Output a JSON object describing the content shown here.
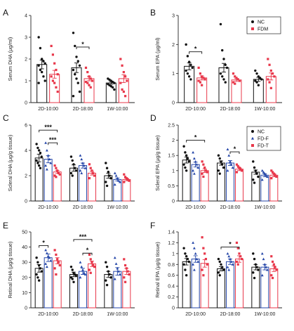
{
  "colors": {
    "nc": "#111111",
    "fd": "#e8374a",
    "fdf": "#2546a8",
    "fdt": "#e8374a"
  },
  "chart_data": [
    {
      "panel": "A",
      "type": "scatter",
      "ylabel": "Serum DHA (μg/ml)",
      "ylim": [
        0,
        4
      ],
      "yticks": [
        0,
        1,
        2,
        3,
        4
      ],
      "categories": [
        "2D-10:00",
        "2D-18:00",
        "1W-10:00"
      ],
      "series": [
        {
          "group": "nc",
          "means": [
            1.75,
            1.6,
            0.9
          ],
          "sems": [
            0.2,
            0.22,
            0.06
          ],
          "points": [
            [
              3.0,
              2.5,
              2.0,
              1.9,
              1.8,
              1.7,
              1.5,
              1.4,
              1.2,
              1.0,
              0.9
            ],
            [
              3.2,
              2.6,
              2.1,
              1.9,
              1.7,
              1.5,
              1.3,
              1.1,
              0.9,
              0.5,
              0.3
            ],
            [
              1.1,
              1.05,
              1.0,
              0.95,
              0.9,
              0.85,
              0.8,
              0.75,
              0.7,
              0.6
            ]
          ]
        },
        {
          "group": "fd",
          "means": [
            1.3,
            1.1,
            1.1
          ],
          "sems": [
            0.18,
            0.1,
            0.18
          ],
          "points": [
            [
              2.6,
              2.2,
              1.8,
              1.5,
              1.3,
              1.2,
              1.0,
              0.9,
              0.7,
              0.5
            ],
            [
              1.6,
              1.4,
              1.2,
              1.1,
              1.0,
              0.95,
              0.9,
              0.8,
              0.7
            ],
            [
              2.0,
              1.7,
              1.4,
              1.2,
              1.0,
              0.9,
              0.6,
              0.5,
              0.3
            ]
          ]
        }
      ],
      "sig": [
        {
          "cat": 1,
          "a": "nc",
          "b": "fd",
          "label": "*",
          "y": 2.55
        }
      ]
    },
    {
      "panel": "B",
      "type": "scatter",
      "ylabel": "Serum EPA (μg/ml)",
      "ylim": [
        0,
        3
      ],
      "yticks": [
        0,
        1,
        2,
        3
      ],
      "categories": [
        "2D-10:00",
        "2D-18:00",
        "1W-10:00"
      ],
      "series": [
        {
          "group": "nc",
          "means": [
            1.25,
            1.2,
            0.8
          ],
          "sems": [
            0.12,
            0.15,
            0.07
          ],
          "points": [
            [
              2.0,
              1.6,
              1.4,
              1.3,
              1.2,
              1.1,
              1.0,
              0.9,
              0.8
            ],
            [
              2.7,
              1.8,
              1.5,
              1.3,
              1.2,
              1.0,
              0.9,
              0.8,
              0.7
            ],
            [
              1.1,
              1.0,
              0.9,
              0.85,
              0.8,
              0.75,
              0.7,
              0.6
            ]
          ]
        },
        {
          "group": "fd",
          "means": [
            0.85,
            0.78,
            0.9
          ],
          "sems": [
            0.07,
            0.05,
            0.12
          ],
          "points": [
            [
              1.2,
              1.0,
              0.9,
              0.85,
              0.8,
              0.75,
              0.7,
              0.6
            ],
            [
              1.0,
              0.9,
              0.85,
              0.8,
              0.75,
              0.7,
              0.65
            ],
            [
              1.5,
              1.3,
              1.1,
              1.0,
              0.9,
              0.8,
              0.7,
              0.5
            ]
          ]
        }
      ],
      "sig": [
        {
          "cat": 0,
          "a": "nc",
          "b": "fd",
          "label": "*",
          "y": 1.75
        }
      ],
      "legend": [
        "NC",
        "FDM"
      ]
    },
    {
      "panel": "C",
      "type": "scatter",
      "ylabel": "Scleral DHA (μg/g tissue)",
      "ylim": [
        0,
        6
      ],
      "yticks": [
        0,
        2,
        4,
        6
      ],
      "categories": [
        "2D-10:00",
        "2D-18:00",
        "1W-10:00"
      ],
      "series": [
        {
          "group": "nc",
          "means": [
            3.4,
            2.6,
            2.0
          ],
          "sems": [
            0.3,
            0.25,
            0.2
          ],
          "points": [
            [
              4.5,
              4.2,
              4.0,
              3.8,
              3.5,
              3.2,
              3.0,
              2.8,
              2.6
            ],
            [
              3.5,
              3.2,
              2.9,
              2.6,
              2.4,
              2.2,
              2.0
            ],
            [
              3.0,
              2.6,
              2.3,
              2.0,
              1.8,
              1.5,
              1.2
            ]
          ]
        },
        {
          "group": "fdf",
          "means": [
            3.3,
            2.8,
            1.7
          ],
          "sems": [
            0.28,
            0.2,
            0.12
          ],
          "points": [
            [
              4.6,
              4.0,
              3.6,
              3.3,
              3.0,
              2.8,
              2.5
            ],
            [
              3.6,
              3.3,
              3.0,
              2.8,
              2.6,
              2.4,
              2.2
            ],
            [
              2.2,
              2.0,
              1.8,
              1.6,
              1.5,
              1.3
            ]
          ]
        },
        {
          "group": "fdt",
          "means": [
            2.3,
            2.2,
            1.7
          ],
          "sems": [
            0.12,
            0.15,
            0.1
          ],
          "points": [
            [
              2.8,
              2.6,
              2.4,
              2.2,
              2.1,
              2.0,
              1.9
            ],
            [
              2.9,
              2.6,
              2.4,
              2.2,
              2.0,
              1.8
            ],
            [
              2.1,
              1.9,
              1.8,
              1.7,
              1.6,
              1.5
            ]
          ]
        }
      ],
      "sig": [
        {
          "cat": 0,
          "a": "nc",
          "b": "fdt",
          "label": "***",
          "y": 5.6
        },
        {
          "cat": 0,
          "a": "fdf",
          "b": "fdt",
          "label": "***",
          "y": 4.6
        }
      ]
    },
    {
      "panel": "D",
      "type": "scatter",
      "ylabel": "Scleral EPA (μg/g tissue)",
      "ylim": [
        0,
        2.5
      ],
      "yticks": [
        0,
        0.5,
        1,
        1.5,
        2,
        2.5
      ],
      "categories": [
        "2D-10:00",
        "2D-18:00",
        "1W-10:00"
      ],
      "series": [
        {
          "group": "nc",
          "means": [
            1.35,
            1.25,
            0.95
          ],
          "sems": [
            0.1,
            0.07,
            0.07
          ],
          "points": [
            [
              1.8,
              1.6,
              1.5,
              1.4,
              1.3,
              1.2,
              1.1,
              1.0
            ],
            [
              1.5,
              1.4,
              1.3,
              1.2,
              1.1,
              1.0,
              0.9
            ],
            [
              1.3,
              1.1,
              1.0,
              0.9,
              0.8,
              0.7,
              0.6
            ]
          ]
        },
        {
          "group": "fdf",
          "means": [
            1.2,
            1.25,
            0.85
          ],
          "sems": [
            0.08,
            0.08,
            0.05
          ],
          "points": [
            [
              1.6,
              1.4,
              1.3,
              1.2,
              1.1,
              1.0,
              0.9
            ],
            [
              1.7,
              1.5,
              1.3,
              1.2,
              1.1,
              1.0
            ],
            [
              1.0,
              0.95,
              0.9,
              0.85,
              0.8,
              0.7
            ]
          ]
        },
        {
          "group": "fdt",
          "means": [
            1.0,
            1.05,
            0.85
          ],
          "sems": [
            0.06,
            0.05,
            0.05
          ],
          "points": [
            [
              1.3,
              1.2,
              1.1,
              1.0,
              0.95,
              0.9,
              0.8
            ],
            [
              1.2,
              1.15,
              1.1,
              1.05,
              1.0,
              0.95
            ],
            [
              1.0,
              0.95,
              0.9,
              0.85,
              0.8,
              0.75
            ]
          ]
        }
      ],
      "sig": [
        {
          "cat": 0,
          "a": "nc",
          "b": "fdt",
          "label": "*",
          "y": 2.0
        },
        {
          "cat": 1,
          "a": "fdf",
          "b": "fdt",
          "label": "*",
          "y": 1.62
        }
      ],
      "legend": [
        "NC",
        "FD-F",
        "FD-T"
      ]
    },
    {
      "panel": "E",
      "type": "scatter",
      "ylabel": "Retinal DHA (μg/g tissue)",
      "ylim": [
        0,
        50
      ],
      "yticks": [
        0,
        10,
        20,
        30,
        40,
        50
      ],
      "categories": [
        "2D-10:00",
        "2D-18:00",
        "1W-10:00"
      ],
      "series": [
        {
          "group": "nc",
          "means": [
            26,
            22,
            22
          ],
          "sems": [
            2.5,
            1.5,
            2.0
          ],
          "points": [
            [
              33,
              30,
              28,
              26,
              24,
              22,
              20,
              18
            ],
            [
              27,
              25,
              23,
              22,
              21,
              20,
              19,
              17
            ],
            [
              30,
              27,
              24,
              22,
              20,
              18,
              15
            ]
          ]
        },
        {
          "group": "fdf",
          "means": [
            33,
            24,
            24
          ],
          "sems": [
            2.5,
            2.0,
            2.5
          ],
          "points": [
            [
              38,
              36,
              34,
              33,
              31,
              29,
              27
            ],
            [
              30,
              27,
              25,
              23,
              22,
              20
            ],
            [
              33,
              29,
              26,
              24,
              22,
              19
            ]
          ]
        },
        {
          "group": "fdt",
          "means": [
            31,
            29,
            24
          ],
          "sems": [
            2.0,
            1.8,
            2.0
          ],
          "points": [
            [
              38,
              35,
              32,
              30,
              28,
              26,
              22
            ],
            [
              35,
              32,
              30,
              28,
              27,
              25,
              23
            ],
            [
              32,
              28,
              26,
              24,
              22,
              20,
              17
            ]
          ]
        }
      ],
      "sig": [
        {
          "cat": 0,
          "a": "nc",
          "b": "fdf",
          "label": "*",
          "y": 41
        },
        {
          "cat": 1,
          "a": "nc",
          "b": "fdt",
          "label": "***",
          "y": 45
        },
        {
          "cat": 1,
          "a": "fdf",
          "b": "fdt",
          "label": "*",
          "y": 36
        }
      ]
    },
    {
      "panel": "F",
      "type": "scatter",
      "ylabel": "Retinal EPA (μg/g tissue)",
      "ylim": [
        0,
        1.4
      ],
      "yticks": [
        0,
        0.2,
        0.4,
        0.6,
        0.8,
        1.0,
        1.2,
        1.4
      ],
      "categories": [
        "2D-10:00",
        "2D-18:00",
        "1W-10:00"
      ],
      "series": [
        {
          "group": "nc",
          "means": [
            0.85,
            0.72,
            0.75
          ],
          "sems": [
            0.06,
            0.04,
            0.05
          ],
          "points": [
            [
              1.1,
              1.0,
              0.95,
              0.9,
              0.85,
              0.8,
              0.7,
              0.6
            ],
            [
              0.9,
              0.85,
              0.8,
              0.75,
              0.7,
              0.65,
              0.6
            ],
            [
              1.0,
              0.9,
              0.8,
              0.75,
              0.7,
              0.65,
              0.55
            ]
          ]
        },
        {
          "group": "fdf",
          "means": [
            0.9,
            0.85,
            0.75
          ],
          "sems": [
            0.06,
            0.05,
            0.05
          ],
          "points": [
            [
              1.2,
              1.1,
              1.0,
              0.9,
              0.85,
              0.8,
              0.7
            ],
            [
              1.0,
              0.95,
              0.9,
              0.85,
              0.8,
              0.75,
              0.7
            ],
            [
              1.0,
              0.9,
              0.8,
              0.75,
              0.7,
              0.6
            ]
          ]
        },
        {
          "group": "fdt",
          "means": [
            0.82,
            0.9,
            0.72
          ],
          "sems": [
            0.07,
            0.06,
            0.05
          ],
          "points": [
            [
              1.3,
              1.1,
              1.0,
              0.9,
              0.8,
              0.7,
              0.6
            ],
            [
              1.2,
              1.1,
              1.0,
              0.95,
              0.9,
              0.85,
              0.8
            ],
            [
              0.95,
              0.85,
              0.8,
              0.75,
              0.7,
              0.6,
              0.55
            ]
          ]
        }
      ],
      "sig": [
        {
          "cat": 1,
          "a": "nc",
          "b": "fdt",
          "label": "*",
          "y": 1.12
        }
      ]
    }
  ]
}
